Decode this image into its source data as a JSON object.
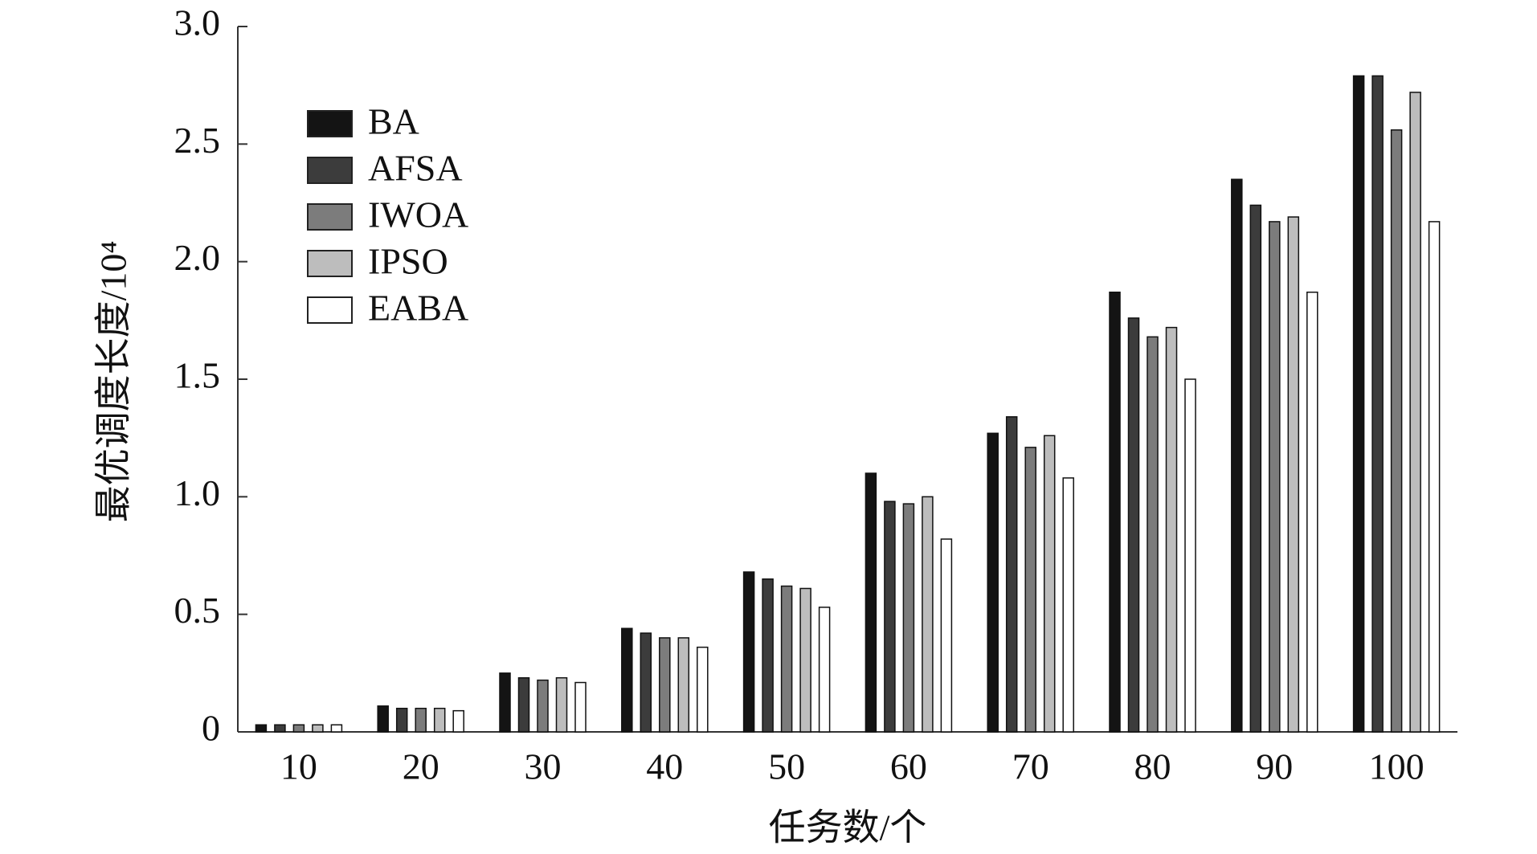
{
  "chart_data": {
    "type": "bar",
    "xlabel": "任务数/个",
    "ylabel": "最优调度长度/10⁴",
    "categories": [
      "10",
      "20",
      "30",
      "40",
      "50",
      "60",
      "70",
      "80",
      "90",
      "100"
    ],
    "series": [
      {
        "name": "BA",
        "color": "#141414",
        "values": [
          0.03,
          0.11,
          0.25,
          0.44,
          0.68,
          1.1,
          1.27,
          1.87,
          2.35,
          2.79
        ]
      },
      {
        "name": "AFSA",
        "color": "#3c3c3c",
        "values": [
          0.03,
          0.1,
          0.23,
          0.42,
          0.65,
          0.98,
          1.34,
          1.76,
          2.24,
          2.79
        ]
      },
      {
        "name": "IWOA",
        "color": "#7c7c7c",
        "values": [
          0.03,
          0.1,
          0.22,
          0.4,
          0.62,
          0.97,
          1.21,
          1.68,
          2.17,
          2.56
        ]
      },
      {
        "name": "IPSO",
        "color": "#bdbdbd",
        "values": [
          0.03,
          0.1,
          0.23,
          0.4,
          0.61,
          1.0,
          1.26,
          1.72,
          2.19,
          2.72
        ]
      },
      {
        "name": "EABA",
        "color": "#ffffff",
        "values": [
          0.03,
          0.09,
          0.21,
          0.36,
          0.53,
          0.82,
          1.08,
          1.5,
          1.87,
          2.17
        ]
      }
    ],
    "ylim": [
      0,
      3.0
    ],
    "yticks": [
      0,
      0.5,
      {
        "value": 1,
        "label": "1.0"
      },
      1.5,
      {
        "value": 2,
        "label": "2.0"
      },
      2.5,
      {
        "value": 3,
        "label": "3.0"
      }
    ],
    "legend": "upper left"
  }
}
